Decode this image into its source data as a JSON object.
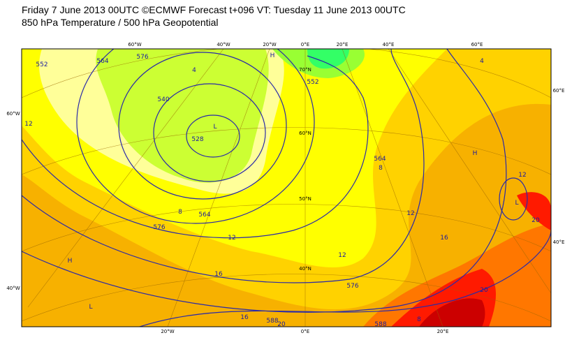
{
  "header": {
    "title": "Friday 7 June 2013 00UTC ©ECMWF Forecast t+096 VT: Tuesday 11 June 2013 00UTC",
    "subtitle": "850 hPa Temperature / 500 hPa Geopotential"
  },
  "map": {
    "top_longitudes": [
      "60°W",
      "40°W",
      "20°W",
      "0°E",
      "20°E",
      "40°E",
      "60°E"
    ],
    "bottom_longitudes": [
      "20°W",
      "0°E",
      "20°E"
    ],
    "left_latitudes": [
      "60°W",
      "40°W"
    ],
    "right_latitudes": [
      "60°E",
      "40°E"
    ],
    "inner_latitudes": [
      "70°N",
      "60°N",
      "50°N",
      "40°N"
    ],
    "contour_labels": [
      "528",
      "540",
      "552",
      "564",
      "564",
      "576",
      "576",
      "588",
      "552",
      "564",
      "576",
      "588"
    ],
    "temperature_labels": [
      "4",
      "8",
      "8",
      "12",
      "12",
      "12",
      "16",
      "16",
      "12",
      "20",
      "20",
      "20",
      "16",
      "12",
      "4",
      "8"
    ],
    "pressure_labels": [
      "L",
      "L",
      "H",
      "H",
      "L",
      "H"
    ]
  }
}
